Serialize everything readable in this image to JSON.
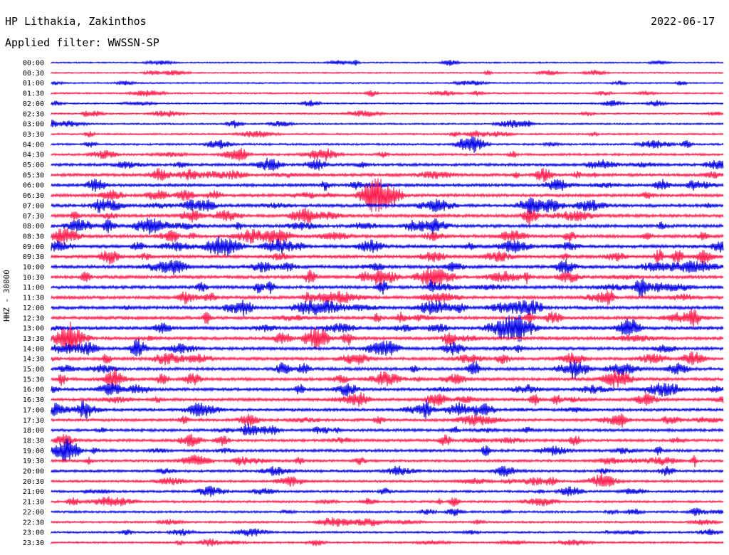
{
  "header": {
    "station": "HP Lithakia, Zakinthos",
    "date": "2022-06-17",
    "filter": "Applied filter: WWSSN-SP",
    "channel_label": "HHZ - 30000"
  },
  "colors": {
    "trace_a": "#0000e6",
    "trace_b": "#ff1a4a",
    "text": "#000000"
  },
  "chart_data": {
    "type": "line",
    "title": "HP Lithakia, Zakinthos",
    "subtitle": "Applied filter: WWSSN-SP",
    "ylabel": "HHZ - 30000",
    "xlabel": "",
    "row_labels": [
      "00:00",
      "00:30",
      "01:00",
      "01:30",
      "02:00",
      "02:30",
      "03:00",
      "03:30",
      "04:00",
      "04:30",
      "05:00",
      "05:30",
      "06:00",
      "06:30",
      "07:00",
      "07:30",
      "08:00",
      "08:30",
      "09:00",
      "09:30",
      "10:00",
      "10:30",
      "11:00",
      "11:30",
      "12:00",
      "12:30",
      "13:00",
      "13:30",
      "14:00",
      "14:30",
      "15:00",
      "15:30",
      "16:00",
      "16:30",
      "17:00",
      "17:30",
      "18:00",
      "18:30",
      "19:00",
      "19:30",
      "20:00",
      "20:30",
      "21:00",
      "21:30",
      "22:00",
      "22:30",
      "23:00",
      "23:30"
    ],
    "row_color_pattern": [
      "blue",
      "red"
    ],
    "relative_noise_level": [
      0.25,
      0.25,
      0.25,
      0.3,
      0.3,
      0.35,
      0.35,
      0.4,
      0.5,
      0.6,
      0.8,
      0.9,
      0.9,
      0.95,
      1.0,
      1.0,
      1.0,
      1.0,
      1.0,
      1.0,
      1.0,
      1.0,
      1.0,
      1.0,
      1.0,
      1.0,
      1.0,
      1.0,
      0.95,
      0.95,
      0.95,
      0.95,
      0.9,
      0.9,
      0.85,
      0.85,
      0.85,
      0.8,
      0.8,
      0.75,
      0.7,
      0.65,
      0.6,
      0.6,
      0.55,
      0.5,
      0.45,
      0.45
    ],
    "grid": false
  }
}
